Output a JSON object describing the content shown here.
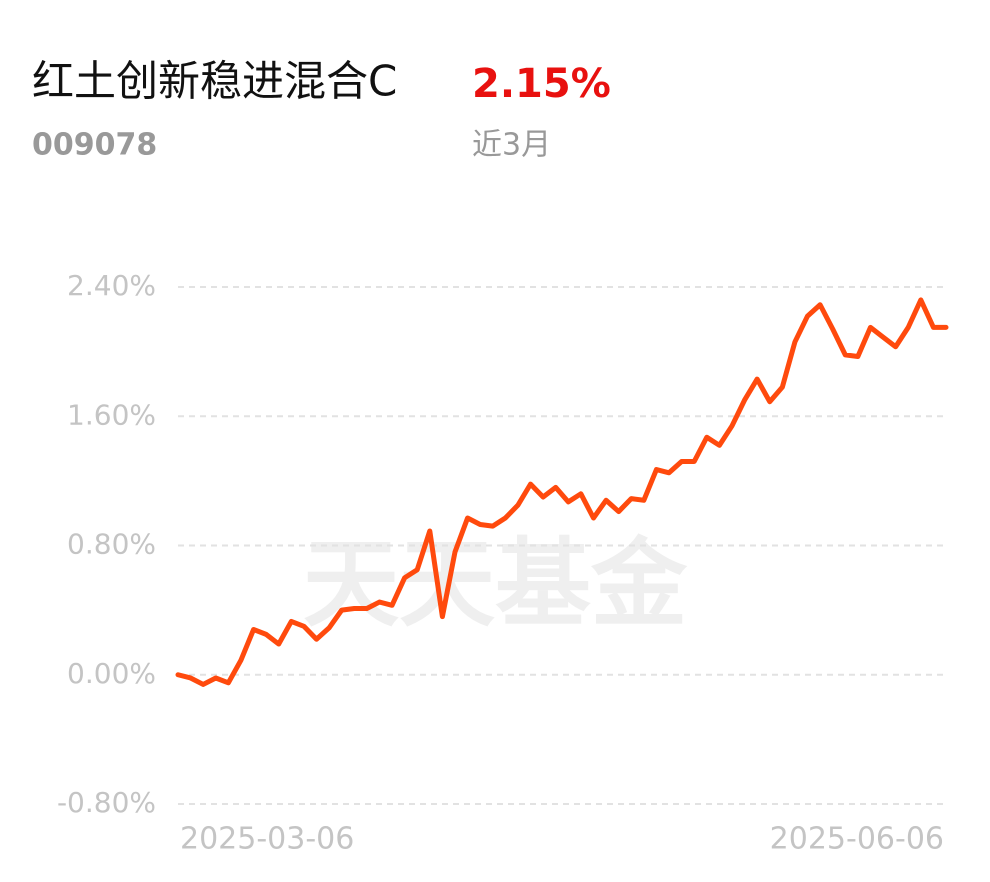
{
  "header": {
    "title": "红土创新稳进混合C",
    "code": "009078",
    "return": "2.15%",
    "period": "近3月"
  },
  "chart_data": {
    "type": "line",
    "watermark": "天天基金",
    "color": "#ff4a0d",
    "grid": true,
    "categories": [
      "2025-03-06",
      null,
      null,
      null,
      null,
      null,
      null,
      null,
      null,
      null,
      null,
      null,
      null,
      null,
      null,
      null,
      null,
      null,
      null,
      null,
      null,
      null,
      null,
      null,
      null,
      null,
      null,
      null,
      null,
      null,
      null,
      null,
      null,
      null,
      null,
      null,
      null,
      null,
      null,
      null,
      null,
      null,
      null,
      null,
      null,
      null,
      null,
      null,
      null,
      null,
      null,
      null,
      null,
      null,
      null,
      null,
      null,
      null,
      null,
      null,
      null,
      "2025-06-06"
    ],
    "values": [
      0,
      -0.02,
      -0.06,
      -0.02,
      -0.05,
      0.09,
      0.28,
      0.25,
      0.19,
      0.33,
      0.3,
      0.22,
      0.29,
      0.4,
      0.41,
      0.41,
      0.45,
      0.43,
      0.6,
      0.65,
      0.89,
      0.36,
      0.76,
      0.97,
      0.93,
      0.92,
      0.97,
      1.05,
      1.18,
      1.1,
      1.16,
      1.07,
      1.12,
      0.97,
      1.08,
      1.01,
      1.09,
      1.08,
      1.27,
      1.25,
      1.32,
      1.32,
      1.47,
      1.42,
      1.54,
      1.7,
      1.83,
      1.69,
      1.78,
      2.06,
      2.22,
      2.29,
      2.14,
      1.98,
      1.97,
      2.15,
      2.09,
      2.03,
      2.15,
      2.32,
      2.15,
      2.15
    ],
    "ylim": [
      -0.8,
      2.4
    ],
    "yticks": [
      {
        "value": 2.4,
        "label": "2.40%"
      },
      {
        "value": 1.6,
        "label": "1.60%"
      },
      {
        "value": 0.8,
        "label": "0.80%"
      },
      {
        "value": 0,
        "label": "0.00%"
      },
      {
        "value": -0.8,
        "label": "-0.80%"
      }
    ]
  }
}
